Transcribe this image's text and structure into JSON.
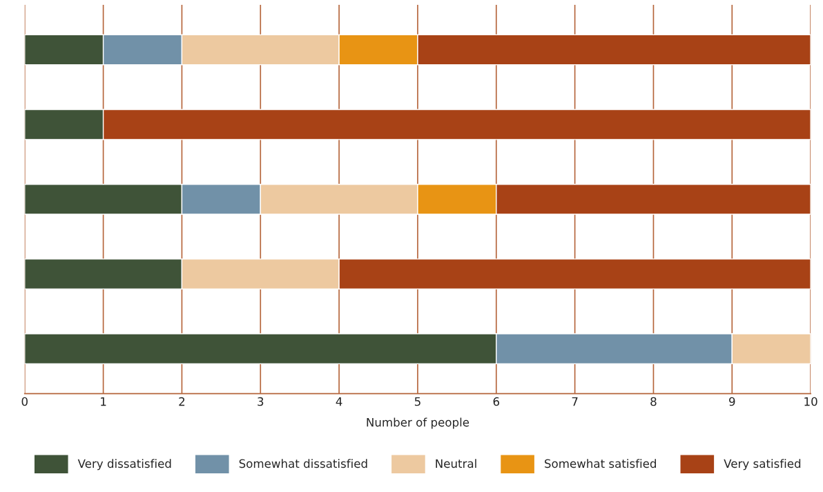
{
  "chart_data": {
    "type": "bar",
    "orientation": "horizontal",
    "stacked": true,
    "categories": [
      null,
      null,
      null,
      null,
      null
    ],
    "xlabel": "Number of people",
    "xlim": [
      0,
      10
    ],
    "xticks": [
      0,
      1,
      2,
      3,
      4,
      5,
      6,
      7,
      8,
      9,
      10
    ],
    "grid": "x",
    "legend": "bottom",
    "series": [
      {
        "name": "Very dissatisfied",
        "color": "#3f5338",
        "values": [
          1,
          1,
          2,
          2,
          6
        ]
      },
      {
        "name": "Somewhat dissatisfied",
        "color": "#7191a8",
        "values": [
          1,
          null,
          1,
          null,
          3
        ]
      },
      {
        "name": "Neutral",
        "color": "#edc9a0",
        "values": [
          2,
          null,
          2,
          2,
          1
        ]
      },
      {
        "name": "Somewhat satisfied",
        "color": "#e89414",
        "values": [
          1,
          null,
          1,
          null,
          null
        ]
      },
      {
        "name": "Very satisfied",
        "color": "#a84216",
        "values": [
          5,
          9,
          4,
          6,
          null
        ]
      }
    ]
  }
}
